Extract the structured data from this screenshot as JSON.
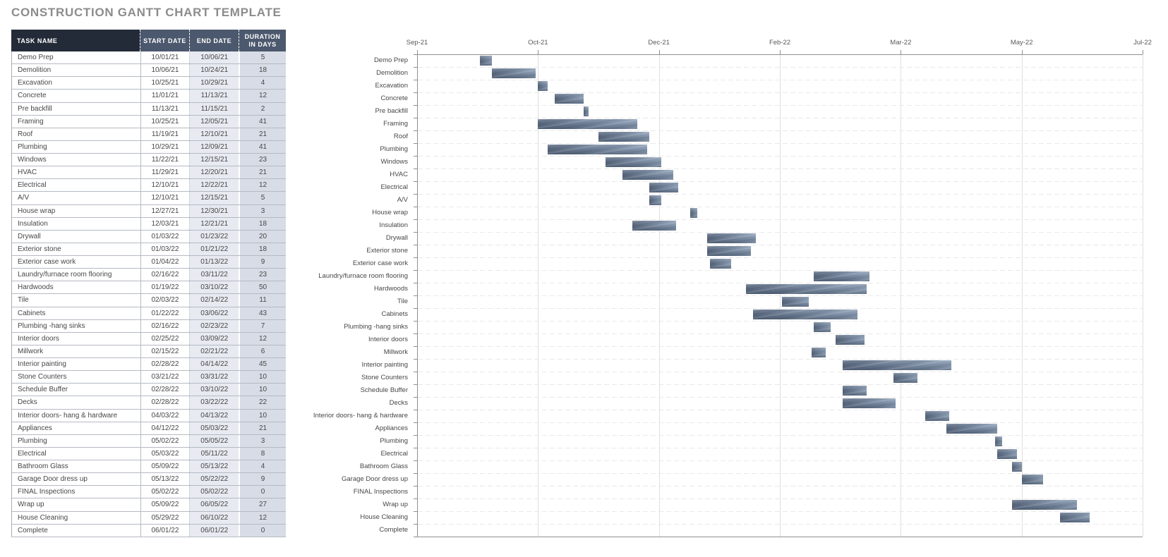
{
  "title": "CONSTRUCTION GANTT CHART TEMPLATE",
  "table": {
    "headers": {
      "task": "TASK NAME",
      "start": "START DATE",
      "end": "END DATE",
      "duration": "DURATION IN DAYS"
    }
  },
  "colors": {
    "header_dark": "#232b38",
    "header_slate": "#4b586d",
    "end_col_bg": "#e7eaf1",
    "duration_col_bg": "#d8dce6",
    "bar_dark": "#5d6c82",
    "bar_light": "#8c9eb5",
    "title_gray": "#8c8c8c"
  },
  "chart_data": {
    "type": "gantt",
    "axis_labels": [
      "Sep-21",
      "Oct-21",
      "Dec-21",
      "Feb-22",
      "Mar-22",
      "May-22",
      "Jul-22"
    ],
    "tasks": [
      {
        "name": "Demo Prep",
        "start": "10/01/21",
        "end": "10/06/21",
        "duration": 5
      },
      {
        "name": "Demolition",
        "start": "10/06/21",
        "end": "10/24/21",
        "duration": 18
      },
      {
        "name": "Excavation",
        "start": "10/25/21",
        "end": "10/29/21",
        "duration": 4
      },
      {
        "name": "Concrete",
        "start": "11/01/21",
        "end": "11/13/21",
        "duration": 12
      },
      {
        "name": "Pre backfill",
        "start": "11/13/21",
        "end": "11/15/21",
        "duration": 2
      },
      {
        "name": "Framing",
        "start": "10/25/21",
        "end": "12/05/21",
        "duration": 41
      },
      {
        "name": "Roof",
        "start": "11/19/21",
        "end": "12/10/21",
        "duration": 21
      },
      {
        "name": "Plumbing",
        "start": "10/29/21",
        "end": "12/09/21",
        "duration": 41
      },
      {
        "name": "Windows",
        "start": "11/22/21",
        "end": "12/15/21",
        "duration": 23
      },
      {
        "name": "HVAC",
        "start": "11/29/21",
        "end": "12/20/21",
        "duration": 21
      },
      {
        "name": "Electrical",
        "start": "12/10/21",
        "end": "12/22/21",
        "duration": 12
      },
      {
        "name": "A/V",
        "start": "12/10/21",
        "end": "12/15/21",
        "duration": 5
      },
      {
        "name": "House wrap",
        "start": "12/27/21",
        "end": "12/30/21",
        "duration": 3
      },
      {
        "name": "Insulation",
        "start": "12/03/21",
        "end": "12/21/21",
        "duration": 18
      },
      {
        "name": "Drywall",
        "start": "01/03/22",
        "end": "01/23/22",
        "duration": 20
      },
      {
        "name": "Exterior stone",
        "start": "01/03/22",
        "end": "01/21/22",
        "duration": 18
      },
      {
        "name": "Exterior case work",
        "start": "01/04/22",
        "end": "01/13/22",
        "duration": 9
      },
      {
        "name": "Laundry/furnace room flooring",
        "start": "02/16/22",
        "end": "03/11/22",
        "duration": 23
      },
      {
        "name": "Hardwoods",
        "start": "01/19/22",
        "end": "03/10/22",
        "duration": 50
      },
      {
        "name": "Tile",
        "start": "02/03/22",
        "end": "02/14/22",
        "duration": 11
      },
      {
        "name": "Cabinets",
        "start": "01/22/22",
        "end": "03/06/22",
        "duration": 43
      },
      {
        "name": "Plumbing -hang sinks",
        "start": "02/16/22",
        "end": "02/23/22",
        "duration": 7
      },
      {
        "name": "Interior doors",
        "start": "02/25/22",
        "end": "03/09/22",
        "duration": 12
      },
      {
        "name": "Millwork",
        "start": "02/15/22",
        "end": "02/21/22",
        "duration": 6
      },
      {
        "name": "Interior painting",
        "start": "02/28/22",
        "end": "04/14/22",
        "duration": 45
      },
      {
        "name": "Stone Counters",
        "start": "03/21/22",
        "end": "03/31/22",
        "duration": 10
      },
      {
        "name": "Schedule Buffer",
        "start": "02/28/22",
        "end": "03/10/22",
        "duration": 10
      },
      {
        "name": "Decks",
        "start": "02/28/22",
        "end": "03/22/22",
        "duration": 22
      },
      {
        "name": "Interior doors- hang & hardware",
        "start": "04/03/22",
        "end": "04/13/22",
        "duration": 10
      },
      {
        "name": "Appliances",
        "start": "04/12/22",
        "end": "05/03/22",
        "duration": 21
      },
      {
        "name": "Plumbing",
        "start": "05/02/22",
        "end": "05/05/22",
        "duration": 3
      },
      {
        "name": "Electrical",
        "start": "05/03/22",
        "end": "05/11/22",
        "duration": 8
      },
      {
        "name": "Bathroom Glass",
        "start": "05/09/22",
        "end": "05/13/22",
        "duration": 4
      },
      {
        "name": "Garage Door dress up",
        "start": "05/13/22",
        "end": "05/22/22",
        "duration": 9
      },
      {
        "name": "FINAL Inspections",
        "start": "05/02/22",
        "end": "05/02/22",
        "duration": 0
      },
      {
        "name": "Wrap up",
        "start": "05/09/22",
        "end": "06/05/22",
        "duration": 27
      },
      {
        "name": "House Cleaning",
        "start": "05/29/22",
        "end": "06/10/22",
        "duration": 12
      },
      {
        "name": "Complete",
        "start": "06/01/22",
        "end": "06/01/22",
        "duration": 0
      }
    ]
  }
}
